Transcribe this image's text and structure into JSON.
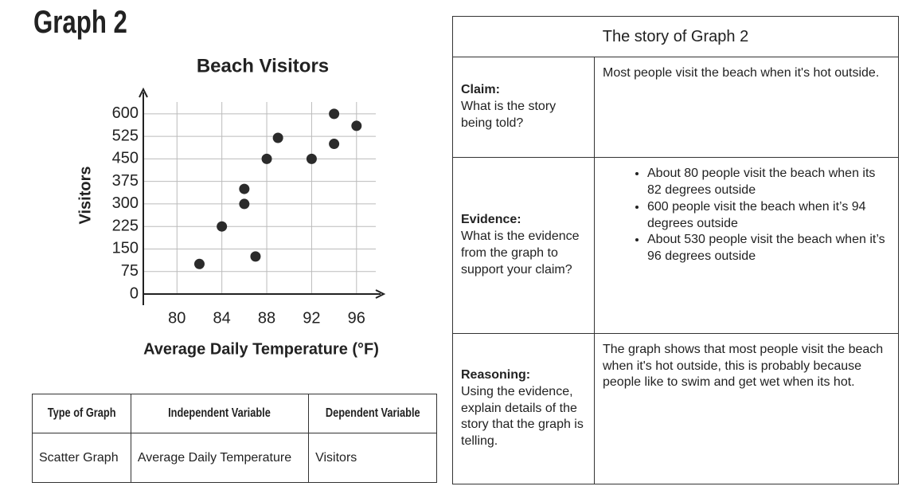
{
  "header": {
    "title": "Graph 2"
  },
  "chart_data": {
    "type": "scatter",
    "title": "Beach Visitors",
    "x_label": "Average Daily Temperature (°F)",
    "y_label": "Visitors",
    "x": [
      82,
      84,
      86,
      86,
      87,
      88,
      89,
      92,
      94,
      94,
      96
    ],
    "values": [
      100,
      225,
      300,
      350,
      125,
      450,
      520,
      450,
      500,
      600,
      560
    ],
    "color": "#2b2b2b",
    "xlim": [
      77,
      98
    ],
    "ylim": [
      0,
      650
    ],
    "xticks": [
      80,
      84,
      88,
      92,
      96
    ],
    "yticks": [
      0,
      75,
      150,
      225,
      300,
      375,
      450,
      525,
      600
    ],
    "grid": true
  },
  "summary_table": {
    "columns": [
      "Type of Graph",
      "Independent Variable",
      "Dependent Variable"
    ],
    "rows": [
      [
        "Scatter Graph",
        "Average Daily Temperature",
        "Visitors"
      ]
    ]
  },
  "story": {
    "title": "The story of Graph 2",
    "rows": [
      {
        "label": "Claim:",
        "prompt": "What is the story being told?",
        "answer": "Most people visit the beach when it's hot outside."
      },
      {
        "label": "Evidence:",
        "prompt": "What is the evidence from the graph to support your claim?",
        "bullets": [
          "About 80 people visit the beach when its 82 degrees outside",
          "600 people visit the beach when it’s 94 degrees outside",
          "About 530 people visit the beach when it’s 96 degrees outside"
        ]
      },
      {
        "label": "Reasoning:",
        "prompt": "Using the evidence, explain details of the story that the graph is telling.",
        "answer": "The graph shows that most people visit the beach when it's hot outside, this is probably because people like to swim and get wet when its hot."
      }
    ]
  }
}
